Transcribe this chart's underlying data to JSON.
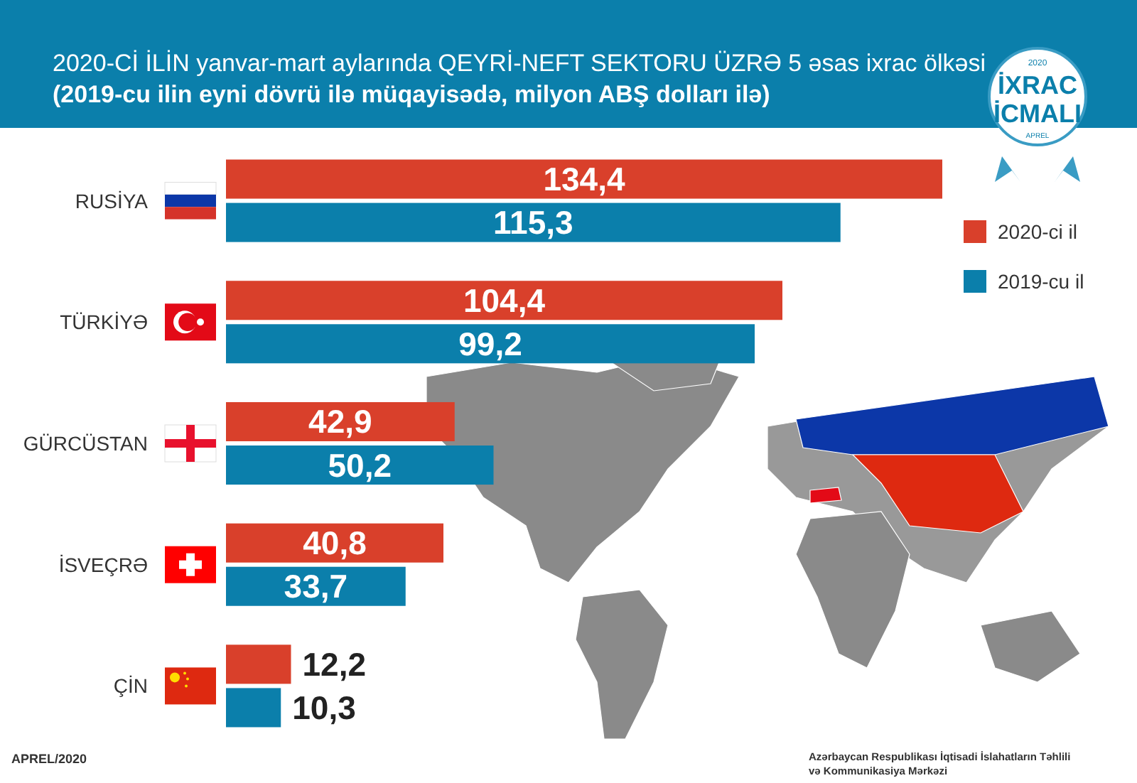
{
  "chart_data": {
    "type": "bar",
    "orientation": "horizontal",
    "title": "2020-Cİ İLİN yanvar-mart aylarında  QEYRİ-NEFT SEKTORU ÜZRƏ 5 əsas ixrac ölkəsi",
    "subtitle": "(2019-cu ilin eyni dövrü ilə müqayisədə, milyon ABŞ dolları ilə)",
    "categories": [
      "RUSİYA",
      "TÜRKİYƏ",
      "GÜRCÜSTAN",
      "İSVEÇRƏ",
      "ÇİN"
    ],
    "series": [
      {
        "name": "2020-ci il",
        "color": "#d9402b",
        "values": [
          134.4,
          104.4,
          42.9,
          40.8,
          12.2
        ],
        "value_labels": [
          "134,4",
          "104,4",
          "42,9",
          "40,8",
          "12,2"
        ]
      },
      {
        "name": "2019-cu il",
        "color": "#0b7fab",
        "values": [
          115.3,
          99.2,
          50.2,
          33.7,
          10.3
        ],
        "value_labels": [
          "115,3",
          "99,2",
          "50,2",
          "33,7",
          "10,3"
        ]
      }
    ],
    "legend": "right",
    "annotations": [
      "APREL/2020",
      "Azərbaycan Respublikası İqtisadi İslahatların Təhlili və Kommunikasiya Mərkəzi",
      "2020",
      "İXRAC",
      "İCMALI",
      "APREL"
    ]
  }
}
